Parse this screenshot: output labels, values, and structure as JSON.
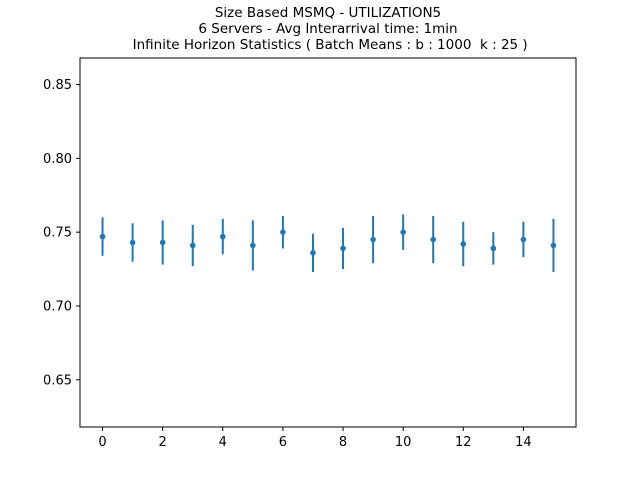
{
  "chart_data": {
    "type": "scatter",
    "error_bars": true,
    "title_lines": [
      "Size Based MSMQ - UTILIZATION5",
      "6 Servers -  Avg Interarrival time: 1min",
      " Infinite Horizon Statistics ( Batch Means : b : 1000  k : 25 )"
    ],
    "xlabel": "",
    "ylabel": "",
    "xlim": [
      -0.75,
      15.75
    ],
    "ylim": [
      0.618,
      0.868
    ],
    "x_ticks": [
      0,
      2,
      4,
      6,
      8,
      10,
      12,
      14
    ],
    "y_ticks": [
      0.65,
      0.7,
      0.75,
      0.8,
      0.85
    ],
    "x_tick_labels": [
      "0",
      "2",
      "4",
      "6",
      "8",
      "10",
      "12",
      "14"
    ],
    "y_tick_labels": [
      "0.65",
      "0.70",
      "0.75",
      "0.80",
      "0.85"
    ],
    "grid": false,
    "color": "#1f77b4",
    "points": [
      {
        "x": 0,
        "y": 0.747,
        "err": 0.013
      },
      {
        "x": 1,
        "y": 0.743,
        "err": 0.013
      },
      {
        "x": 2,
        "y": 0.743,
        "err": 0.015
      },
      {
        "x": 3,
        "y": 0.741,
        "err": 0.014
      },
      {
        "x": 4,
        "y": 0.747,
        "err": 0.012
      },
      {
        "x": 5,
        "y": 0.741,
        "err": 0.017
      },
      {
        "x": 6,
        "y": 0.75,
        "err": 0.011
      },
      {
        "x": 7,
        "y": 0.736,
        "err": 0.013
      },
      {
        "x": 8,
        "y": 0.739,
        "err": 0.014
      },
      {
        "x": 9,
        "y": 0.745,
        "err": 0.016
      },
      {
        "x": 10,
        "y": 0.75,
        "err": 0.012
      },
      {
        "x": 11,
        "y": 0.745,
        "err": 0.016
      },
      {
        "x": 12,
        "y": 0.742,
        "err": 0.015
      },
      {
        "x": 13,
        "y": 0.739,
        "err": 0.011
      },
      {
        "x": 14,
        "y": 0.745,
        "err": 0.012
      },
      {
        "x": 15,
        "y": 0.741,
        "err": 0.018
      }
    ]
  }
}
